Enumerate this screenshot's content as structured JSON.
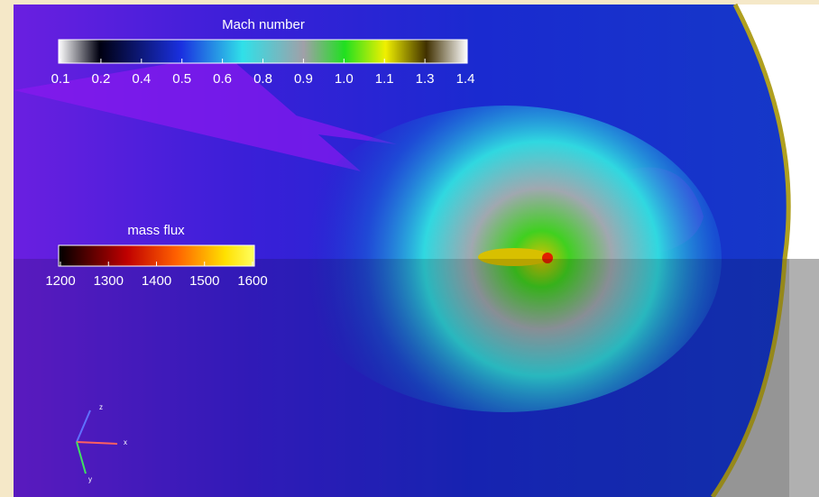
{
  "colorbars": [
    {
      "title": "Mach number",
      "ticks": [
        "0.1",
        "0.2",
        "0.4",
        "0.5",
        "0.6",
        "0.8",
        "0.9",
        "1.0",
        "1.1",
        "1.3",
        "1.4"
      ]
    },
    {
      "title": "mass flux",
      "ticks": [
        "1200",
        "1300",
        "1400",
        "1500",
        "1600"
      ]
    }
  ],
  "axes_triad": {
    "labels": [
      "z",
      "x",
      "y"
    ]
  }
}
